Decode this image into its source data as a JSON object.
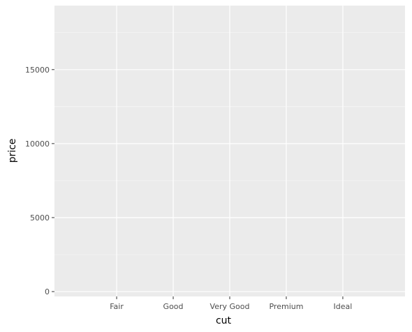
{
  "chart_data": {
    "type": "scatter",
    "title": "",
    "xlabel": "cut",
    "ylabel": "price",
    "categories": [
      "Fair",
      "Good",
      "Very Good",
      "Premium",
      "Ideal"
    ],
    "y_ticks": [
      0,
      5000,
      10000,
      15000
    ],
    "y_tick_labels": [
      "0",
      "5000",
      "10000",
      "15000"
    ],
    "ylim": [
      -327,
      19326
    ],
    "series": [],
    "grid": true
  },
  "colors": {
    "panel": "#ebebeb",
    "grid_major": "#ffffff",
    "grid_minor": "#f5f5f5",
    "tick_text": "#4d4d4d",
    "tick_mark": "#333333",
    "title_text": "#000000"
  }
}
